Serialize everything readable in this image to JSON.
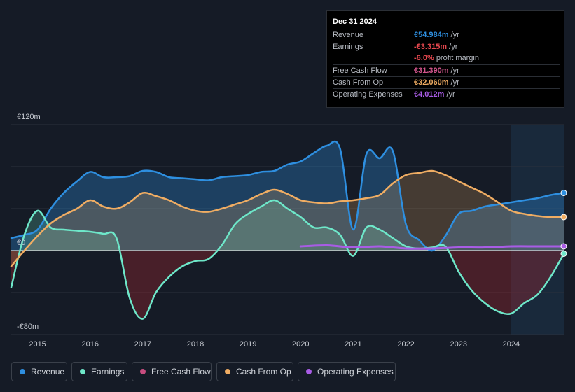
{
  "tooltip": {
    "date": "Dec 31 2024",
    "rows": {
      "revenue": {
        "label": "Revenue",
        "value": "€54.984m",
        "unit": "/yr",
        "color": "#2e8fe0"
      },
      "earnings": {
        "label": "Earnings",
        "value": "-€3.315m",
        "unit": "/yr",
        "color": "#e8484f"
      },
      "margin": {
        "value": "-6.0%",
        "unit": "profit margin",
        "color": "#e8484f"
      },
      "fcf": {
        "label": "Free Cash Flow",
        "value": "€31.390m",
        "unit": "/yr",
        "color": "#d2558c"
      },
      "cfo": {
        "label": "Cash From Op",
        "value": "€32.060m",
        "unit": "/yr",
        "color": "#f0ad63"
      },
      "opex": {
        "label": "Operating Expenses",
        "value": "€4.012m",
        "unit": "/yr",
        "color": "#a95ce6"
      }
    }
  },
  "legend": [
    {
      "label": "Revenue",
      "color": "#2e8fe0"
    },
    {
      "label": "Earnings",
      "color": "#6ee7c9"
    },
    {
      "label": "Free Cash Flow",
      "color": "#c84d7f"
    },
    {
      "label": "Cash From Op",
      "color": "#f0ad63"
    },
    {
      "label": "Operating Expenses",
      "color": "#a95ce6"
    }
  ],
  "chart_data": {
    "type": "line",
    "title": "",
    "xlabel": "",
    "ylabel": "",
    "x_ticks": [
      "2015",
      "2016",
      "2017",
      "2018",
      "2019",
      "2020",
      "2021",
      "2022",
      "2023",
      "2024"
    ],
    "y_ticks": [
      "€120m",
      "€0",
      "-€80m"
    ],
    "ylim": [
      -80,
      120
    ],
    "xlim": [
      2014.5,
      2025.0
    ],
    "highlight_from": 2024.0,
    "series": [
      {
        "name": "Revenue",
        "color": "#2e8fe0",
        "x": [
          2014.5,
          2014.75,
          2015.0,
          2015.25,
          2015.5,
          2015.75,
          2016.0,
          2016.25,
          2016.5,
          2016.75,
          2017.0,
          2017.25,
          2017.5,
          2017.75,
          2018.0,
          2018.25,
          2018.5,
          2018.75,
          2019.0,
          2019.25,
          2019.5,
          2019.75,
          2020.0,
          2020.25,
          2020.5,
          2020.75,
          2021.0,
          2021.25,
          2021.5,
          2021.75,
          2022.0,
          2022.25,
          2022.5,
          2022.75,
          2023.0,
          2023.25,
          2023.5,
          2023.75,
          2024.0,
          2024.25,
          2024.5,
          2024.75,
          2025.0
        ],
        "y": [
          12,
          15,
          20,
          40,
          55,
          66,
          75,
          70,
          70,
          71,
          76,
          75,
          70,
          69,
          68,
          67,
          70,
          71,
          72,
          75,
          76,
          82,
          85,
          93,
          100,
          97,
          20,
          92,
          88,
          95,
          25,
          10,
          0,
          14,
          35,
          38,
          42,
          44,
          46,
          48,
          50,
          53,
          55
        ]
      },
      {
        "name": "Earnings",
        "color": "#6ee7c9",
        "x": [
          2014.5,
          2014.75,
          2015.0,
          2015.25,
          2015.5,
          2015.75,
          2016.0,
          2016.25,
          2016.5,
          2016.75,
          2017.0,
          2017.25,
          2017.5,
          2017.75,
          2018.0,
          2018.25,
          2018.5,
          2018.75,
          2019.0,
          2019.25,
          2019.5,
          2019.75,
          2020.0,
          2020.25,
          2020.5,
          2020.75,
          2021.0,
          2021.25,
          2021.5,
          2021.75,
          2022.0,
          2022.25,
          2022.5,
          2022.75,
          2023.0,
          2023.25,
          2023.5,
          2023.75,
          2024.0,
          2024.25,
          2024.5,
          2024.75,
          2025.0
        ],
        "y": [
          -35,
          15,
          38,
          22,
          20,
          19,
          18,
          16,
          12,
          -45,
          -65,
          -40,
          -25,
          -15,
          -10,
          -8,
          5,
          25,
          35,
          42,
          48,
          40,
          32,
          22,
          22,
          15,
          -5,
          22,
          20,
          12,
          4,
          2,
          3,
          4,
          -20,
          -38,
          -50,
          -58,
          -60,
          -50,
          -42,
          -25,
          -3
        ]
      },
      {
        "name": "Cash From Op",
        "color": "#f0ad63",
        "x": [
          2014.5,
          2014.75,
          2015.0,
          2015.25,
          2015.5,
          2015.75,
          2016.0,
          2016.25,
          2016.5,
          2016.75,
          2017.0,
          2017.25,
          2017.5,
          2017.75,
          2018.0,
          2018.25,
          2018.5,
          2018.75,
          2019.0,
          2019.25,
          2019.5,
          2019.75,
          2020.0,
          2020.25,
          2020.5,
          2020.75,
          2021.0,
          2021.25,
          2021.5,
          2021.75,
          2022.0,
          2022.25,
          2022.5,
          2022.75,
          2023.0,
          2023.25,
          2023.5,
          2023.75,
          2024.0,
          2024.25,
          2024.5,
          2024.75,
          2025.0
        ],
        "y": [
          -15,
          0,
          14,
          26,
          34,
          40,
          48,
          42,
          40,
          46,
          55,
          52,
          48,
          42,
          38,
          37,
          40,
          44,
          48,
          54,
          58,
          54,
          48,
          46,
          45,
          47,
          48,
          50,
          53,
          64,
          72,
          74,
          76,
          72,
          66,
          60,
          54,
          46,
          38,
          35,
          33,
          32,
          32
        ]
      },
      {
        "name": "Operating Expenses",
        "color": "#a95ce6",
        "x": [
          2020.0,
          2020.5,
          2021.0,
          2021.5,
          2022.0,
          2022.5,
          2023.0,
          2023.5,
          2024.0,
          2024.5,
          2025.0
        ],
        "y": [
          4,
          5,
          3,
          4,
          2,
          2,
          3,
          3,
          4,
          4,
          4
        ]
      },
      {
        "name": "Free Cash Flow",
        "color": "#c84d7f",
        "x": [
          2014.5,
          2014.75,
          2015.0,
          2015.25,
          2015.5,
          2015.75,
          2016.0,
          2016.25,
          2016.5,
          2016.75,
          2017.0,
          2017.25,
          2017.5,
          2017.75,
          2018.0,
          2018.25,
          2018.5,
          2018.75,
          2019.0,
          2019.25,
          2019.5,
          2019.75,
          2020.0,
          2020.25,
          2020.5,
          2020.75,
          2021.0,
          2021.25,
          2021.5,
          2021.75,
          2022.0,
          2022.25,
          2022.5,
          2022.75,
          2023.0,
          2023.25,
          2023.5,
          2023.75,
          2024.0,
          2024.25,
          2024.5,
          2024.75,
          2025.0
        ],
        "y": [
          -15,
          0,
          14,
          26,
          34,
          40,
          48,
          42,
          40,
          46,
          55,
          52,
          48,
          42,
          38,
          37,
          40,
          44,
          48,
          54,
          58,
          54,
          48,
          46,
          45,
          47,
          48,
          50,
          53,
          64,
          72,
          74,
          76,
          72,
          66,
          60,
          54,
          46,
          38,
          35,
          33,
          32,
          31
        ]
      }
    ]
  }
}
